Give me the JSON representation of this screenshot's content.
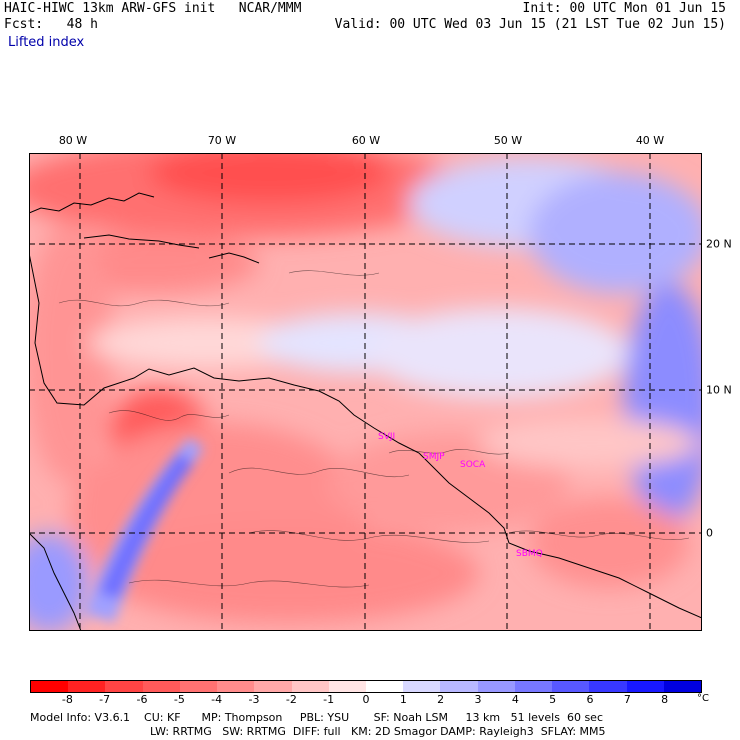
{
  "header": {
    "left_line1": "HAIC-HIWC 13km ARW-GFS init   NCAR/MMM",
    "left_line2": "Fcst:   48 h",
    "field": "Lifted index",
    "right_line1": "Init: 00 UTC Mon 01 Jun 15",
    "right_line2": "Valid: 00 UTC Wed 03 Jun 15 (21 LST Tue 02 Jun 15)"
  },
  "map": {
    "longitude_labels": [
      "80 W",
      "70 W",
      "60 W",
      "50 W",
      "40 W"
    ],
    "latitude_labels": [
      "20 N",
      "10 N",
      "0"
    ],
    "stations": [
      "SVJI",
      "SMJP",
      "SOCA",
      "SBMQ"
    ],
    "background_color": "#ffb0b0",
    "grid_style": "dashed"
  },
  "colorbar": {
    "tick_labels": [
      "-8",
      "-7",
      "-6",
      "-5",
      "-4",
      "-3",
      "-2",
      "-1",
      "0",
      "1",
      "2",
      "3",
      "4",
      "5",
      "6",
      "7",
      "8"
    ],
    "unit": "°C",
    "colors": [
      "#ff0000",
      "#ff2222",
      "#ff4444",
      "#ff5a5a",
      "#ff7272",
      "#ff8c8c",
      "#ffa8a8",
      "#ffc6c6",
      "#ffe4e4",
      "#ffffff",
      "#d8d8ff",
      "#b8b8ff",
      "#9898ff",
      "#7878ff",
      "#5858ff",
      "#3838ff",
      "#1818ff",
      "#0000e0"
    ]
  },
  "footer": {
    "line1": "Model Info: V3.6.1    CU: KF      MP: Thompson     PBL: YSU       SF: Noah LSM     13 km   51 levels  60 sec",
    "line2": "LW: RRTMG   SW: RRTMG  DIFF: full   KM: 2D Smagor DAMP: Rayleigh3  SFLAY: MM5"
  }
}
